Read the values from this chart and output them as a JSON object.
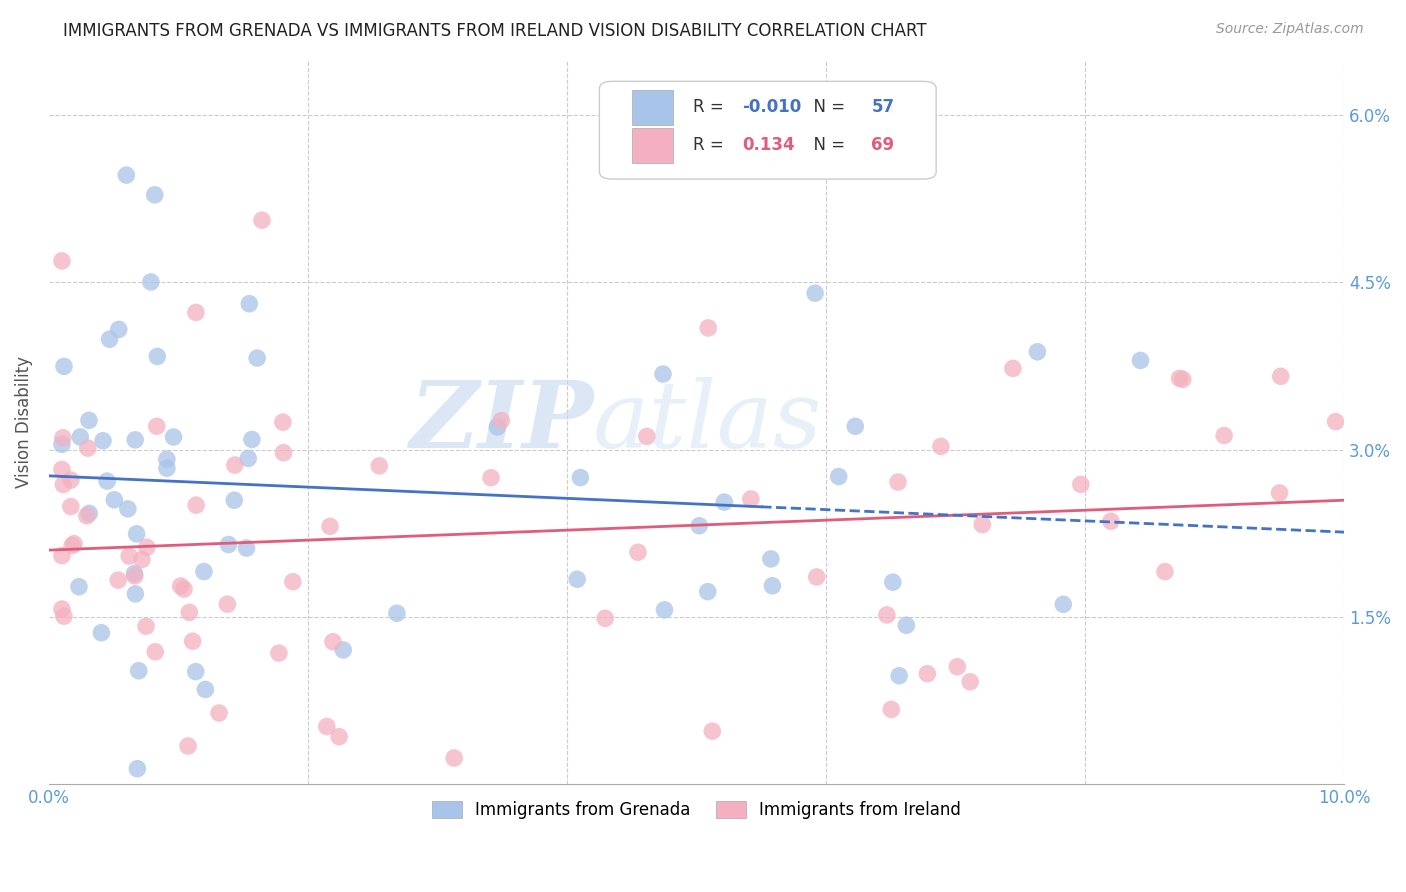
{
  "title": "IMMIGRANTS FROM GRENADA VS IMMIGRANTS FROM IRELAND VISION DISABILITY CORRELATION CHART",
  "source": "Source: ZipAtlas.com",
  "ylabel": "Vision Disability",
  "xlim": [
    0.0,
    0.1
  ],
  "ylim": [
    0.0,
    0.065
  ],
  "yticks": [
    0.0,
    0.015,
    0.03,
    0.045,
    0.06
  ],
  "yticklabels": [
    "",
    "1.5%",
    "3.0%",
    "4.5%",
    "6.0%"
  ],
  "color_grenada": "#a8c4e8",
  "color_ireland": "#f4b0c0",
  "line_color_grenada": "#4472C4",
  "line_color_ireland": "#E05C7A",
  "R_grenada": -0.01,
  "N_grenada": 57,
  "R_ireland": 0.134,
  "N_ireland": 69,
  "watermark_zip": "ZIP",
  "watermark_atlas": "atlas",
  "background_color": "#ffffff",
  "grid_color": "#cccccc",
  "tick_label_color": "#5b9bd5",
  "title_fontsize": 12,
  "source_fontsize": 10,
  "tick_fontsize": 12,
  "ylabel_fontsize": 12
}
